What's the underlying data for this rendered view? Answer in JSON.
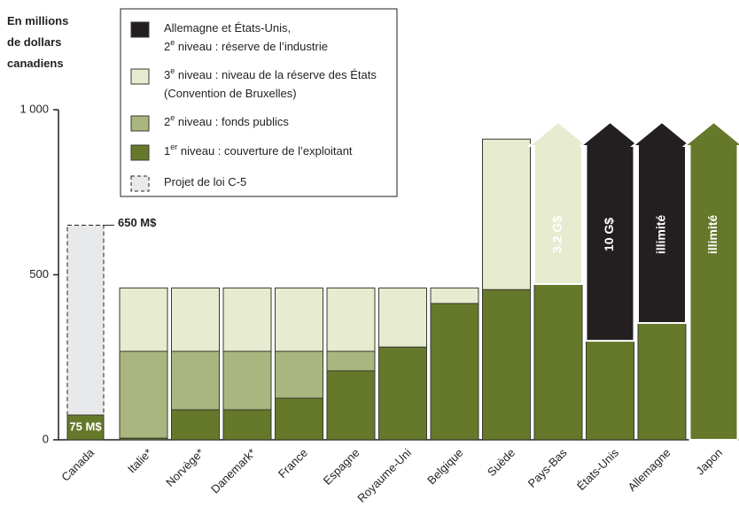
{
  "chart_data": {
    "type": "bar",
    "stacked": true,
    "y_label": "En millions\nde dollars\ncanadiens",
    "categories": [
      "Canada",
      "Italie*",
      "Norvège*",
      "Danemark*",
      "France",
      "Espagne",
      "Royaume-Uni",
      "Belgique",
      "Suède",
      "Pays-Bas",
      "États-Unis",
      "Allemagne",
      "Japon"
    ],
    "series": [
      {
        "name": "Allemagne et États-Unis,\n2e niveau : réserve de l’industrie",
        "color": "#231f20",
        "values": [
          null,
          null,
          null,
          null,
          null,
          null,
          null,
          null,
          null,
          null,
          null,
          null,
          null
        ]
      },
      {
        "name": "3e niveau : niveau de la réserve des États\n(Convention de Bruxelles)",
        "color": "#e7ebcf",
        "values": [
          null,
          192,
          192,
          192,
          192,
          192,
          179,
          47,
          456,
          null,
          null,
          null,
          null
        ]
      },
      {
        "name": "2e niveau : fonds publics",
        "color": "#aab67f",
        "values": [
          null,
          263,
          177,
          177,
          142,
          59,
          null,
          null,
          null,
          null,
          null,
          null,
          null
        ]
      },
      {
        "name": "1er niveau : couverture de l’exploitant",
        "color": "#66792b",
        "values": [
          75,
          5,
          91,
          91,
          126,
          209,
          281,
          413,
          455,
          472,
          300,
          354,
          null
        ],
        "value_labels": [
          "75 M$",
          null,
          null,
          null,
          null,
          null,
          null,
          null,
          null,
          null,
          null,
          null,
          null
        ]
      }
    ],
    "bill": {
      "name": "Projet de loi C-5",
      "color": "#e8e9eb",
      "category": 0,
      "value": 650,
      "value_label": "650 M$"
    },
    "annotations": [
      {
        "text": "3.2 G$",
        "category": 9,
        "series": 1
      },
      {
        "text": "10 G$",
        "category": 10,
        "series": 0
      },
      {
        "text": "illimité",
        "category": 11,
        "series": 0
      },
      {
        "text": "illimité",
        "category": 12,
        "series": 3
      }
    ],
    "ylim": [
      0,
      1000
    ],
    "yticks": [
      0,
      500,
      {
        "value": 1000,
        "label": "1 000"
      }
    ]
  }
}
